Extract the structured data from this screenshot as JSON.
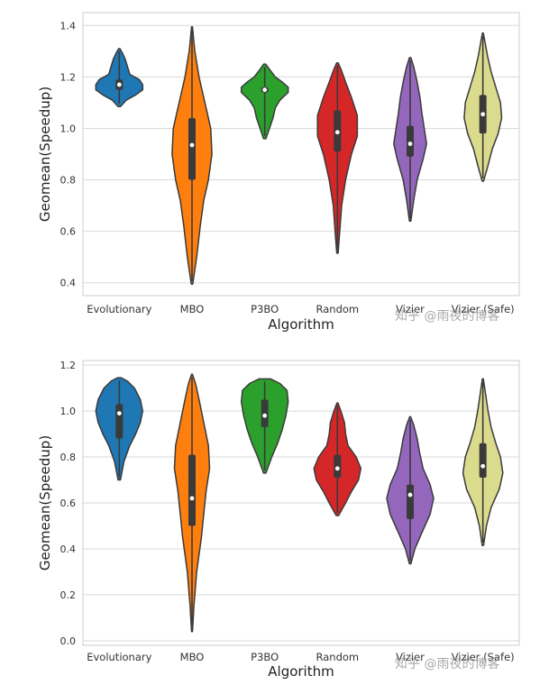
{
  "watermark": "知乎 @雨夜的博客",
  "chart_data": [
    {
      "type": "violin",
      "xlabel": "Algorithm",
      "ylabel": "Geomean(Speedup)",
      "ylim": [
        0.35,
        1.45
      ],
      "yticks": [
        0.4,
        0.6,
        0.8,
        1.0,
        1.2,
        1.4
      ],
      "ytick_labels": [
        "0.4",
        "0.6",
        "0.8",
        "1.0",
        "1.2",
        "1.4"
      ],
      "grid": "horizontal",
      "categories": [
        "Evolutionary",
        "MBO",
        "P3BO",
        "Random",
        "Vizier",
        "Vizier (Safe)"
      ],
      "colors": [
        "#1f77b4",
        "#ff7f0e",
        "#2ca02c",
        "#d62728",
        "#9467bd",
        "#dbdb8d"
      ],
      "violins": [
        {
          "min": 1.085,
          "max": 1.31,
          "q1": 1.15,
          "median": 1.17,
          "q3": 1.19,
          "profile": [
            [
              1.085,
              0.05
            ],
            [
              1.11,
              0.3
            ],
            [
              1.13,
              0.7
            ],
            [
              1.15,
              1.0
            ],
            [
              1.17,
              1.0
            ],
            [
              1.19,
              0.85
            ],
            [
              1.21,
              0.45
            ],
            [
              1.24,
              0.35
            ],
            [
              1.27,
              0.25
            ],
            [
              1.29,
              0.15
            ],
            [
              1.31,
              0.03
            ]
          ]
        },
        {
          "min": 0.395,
          "max": 1.395,
          "q1": 0.8,
          "median": 0.935,
          "q3": 1.04,
          "profile": [
            [
              0.395,
              0.03
            ],
            [
              0.5,
              0.2
            ],
            [
              0.62,
              0.35
            ],
            [
              0.72,
              0.5
            ],
            [
              0.8,
              0.7
            ],
            [
              0.9,
              0.85
            ],
            [
              1.0,
              0.8
            ],
            [
              1.1,
              0.55
            ],
            [
              1.2,
              0.3
            ],
            [
              1.3,
              0.12
            ],
            [
              1.395,
              0.02
            ]
          ]
        },
        {
          "min": 0.96,
          "max": 1.25,
          "q1": 1.14,
          "median": 1.15,
          "q3": 1.16,
          "profile": [
            [
              0.96,
              0.05
            ],
            [
              1.0,
              0.2
            ],
            [
              1.04,
              0.35
            ],
            [
              1.08,
              0.45
            ],
            [
              1.11,
              0.65
            ],
            [
              1.14,
              1.0
            ],
            [
              1.16,
              1.0
            ],
            [
              1.18,
              0.75
            ],
            [
              1.2,
              0.45
            ],
            [
              1.23,
              0.2
            ],
            [
              1.25,
              0.04
            ]
          ]
        },
        {
          "min": 0.515,
          "max": 1.255,
          "q1": 0.91,
          "median": 0.985,
          "q3": 1.07,
          "profile": [
            [
              0.515,
              0.03
            ],
            [
              0.6,
              0.1
            ],
            [
              0.7,
              0.18
            ],
            [
              0.8,
              0.35
            ],
            [
              0.9,
              0.6
            ],
            [
              0.97,
              0.85
            ],
            [
              1.05,
              0.85
            ],
            [
              1.12,
              0.6
            ],
            [
              1.18,
              0.35
            ],
            [
              1.23,
              0.15
            ],
            [
              1.255,
              0.03
            ]
          ]
        },
        {
          "min": 0.64,
          "max": 1.275,
          "q1": 0.89,
          "median": 0.94,
          "q3": 1.01,
          "profile": [
            [
              0.64,
              0.03
            ],
            [
              0.72,
              0.15
            ],
            [
              0.8,
              0.3
            ],
            [
              0.88,
              0.55
            ],
            [
              0.94,
              0.7
            ],
            [
              1.0,
              0.6
            ],
            [
              1.06,
              0.5
            ],
            [
              1.12,
              0.42
            ],
            [
              1.18,
              0.3
            ],
            [
              1.24,
              0.15
            ],
            [
              1.275,
              0.03
            ]
          ]
        },
        {
          "min": 0.795,
          "max": 1.37,
          "q1": 0.98,
          "median": 1.055,
          "q3": 1.13,
          "profile": [
            [
              0.795,
              0.03
            ],
            [
              0.85,
              0.2
            ],
            [
              0.92,
              0.4
            ],
            [
              0.98,
              0.65
            ],
            [
              1.04,
              0.8
            ],
            [
              1.1,
              0.75
            ],
            [
              1.16,
              0.55
            ],
            [
              1.22,
              0.35
            ],
            [
              1.28,
              0.2
            ],
            [
              1.33,
              0.1
            ],
            [
              1.37,
              0.02
            ]
          ]
        }
      ]
    },
    {
      "type": "violin",
      "xlabel": "Algorithm",
      "ylabel": "Geomean(Speedup)",
      "ylim": [
        -0.02,
        1.22
      ],
      "yticks": [
        0.0,
        0.2,
        0.4,
        0.6,
        0.8,
        1.0,
        1.2
      ],
      "ytick_labels": [
        "0.0",
        "0.2",
        "0.4",
        "0.6",
        "0.8",
        "1.0",
        "1.2"
      ],
      "grid": "horizontal",
      "categories": [
        "Evolutionary",
        "MBO",
        "P3BO",
        "Random",
        "Vizier",
        "Vizier (Safe)"
      ],
      "colors": [
        "#1f77b4",
        "#ff7f0e",
        "#2ca02c",
        "#d62728",
        "#9467bd",
        "#dbdb8d"
      ],
      "violins": [
        {
          "min": 0.7,
          "max": 1.145,
          "q1": 0.88,
          "median": 0.99,
          "q3": 1.03,
          "profile": [
            [
              0.7,
              0.05
            ],
            [
              0.78,
              0.2
            ],
            [
              0.85,
              0.45
            ],
            [
              0.9,
              0.7
            ],
            [
              0.95,
              0.9
            ],
            [
              1.0,
              1.0
            ],
            [
              1.05,
              0.9
            ],
            [
              1.1,
              0.65
            ],
            [
              1.13,
              0.35
            ],
            [
              1.145,
              0.08
            ]
          ]
        },
        {
          "min": 0.04,
          "max": 1.16,
          "q1": 0.5,
          "median": 0.62,
          "q3": 0.81,
          "profile": [
            [
              0.04,
              0.02
            ],
            [
              0.15,
              0.08
            ],
            [
              0.3,
              0.2
            ],
            [
              0.45,
              0.4
            ],
            [
              0.55,
              0.5
            ],
            [
              0.65,
              0.6
            ],
            [
              0.75,
              0.75
            ],
            [
              0.85,
              0.7
            ],
            [
              0.95,
              0.5
            ],
            [
              1.05,
              0.3
            ],
            [
              1.12,
              0.15
            ],
            [
              1.16,
              0.02
            ]
          ]
        },
        {
          "min": 0.73,
          "max": 1.14,
          "q1": 0.93,
          "median": 0.98,
          "q3": 1.05,
          "profile": [
            [
              0.73,
              0.05
            ],
            [
              0.8,
              0.3
            ],
            [
              0.86,
              0.55
            ],
            [
              0.92,
              0.75
            ],
            [
              0.98,
              0.9
            ],
            [
              1.04,
              1.0
            ],
            [
              1.09,
              0.95
            ],
            [
              1.12,
              0.65
            ],
            [
              1.14,
              0.25
            ]
          ]
        },
        {
          "min": 0.545,
          "max": 1.035,
          "q1": 0.71,
          "median": 0.75,
          "q3": 0.81,
          "profile": [
            [
              0.545,
              0.05
            ],
            [
              0.6,
              0.35
            ],
            [
              0.65,
              0.6
            ],
            [
              0.7,
              0.9
            ],
            [
              0.75,
              1.0
            ],
            [
              0.8,
              0.8
            ],
            [
              0.85,
              0.45
            ],
            [
              0.9,
              0.35
            ],
            [
              0.95,
              0.3
            ],
            [
              1.0,
              0.15
            ],
            [
              1.035,
              0.02
            ]
          ]
        },
        {
          "min": 0.335,
          "max": 0.975,
          "q1": 0.53,
          "median": 0.635,
          "q3": 0.68,
          "profile": [
            [
              0.335,
              0.03
            ],
            [
              0.4,
              0.2
            ],
            [
              0.47,
              0.5
            ],
            [
              0.55,
              0.85
            ],
            [
              0.62,
              1.0
            ],
            [
              0.68,
              0.85
            ],
            [
              0.75,
              0.55
            ],
            [
              0.82,
              0.4
            ],
            [
              0.88,
              0.3
            ],
            [
              0.94,
              0.15
            ],
            [
              0.975,
              0.02
            ]
          ]
        },
        {
          "min": 0.415,
          "max": 1.14,
          "q1": 0.71,
          "median": 0.76,
          "q3": 0.86,
          "profile": [
            [
              0.415,
              0.03
            ],
            [
              0.5,
              0.15
            ],
            [
              0.58,
              0.35
            ],
            [
              0.66,
              0.7
            ],
            [
              0.73,
              0.85
            ],
            [
              0.8,
              0.75
            ],
            [
              0.86,
              0.55
            ],
            [
              0.93,
              0.35
            ],
            [
              1.0,
              0.22
            ],
            [
              1.07,
              0.12
            ],
            [
              1.14,
              0.02
            ]
          ]
        }
      ]
    }
  ]
}
